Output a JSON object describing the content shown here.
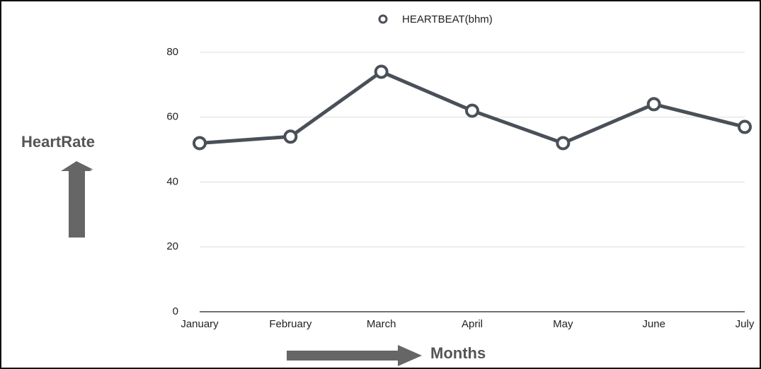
{
  "chart_data": {
    "type": "line",
    "legend": "HEARTBEAT(bhm)",
    "ylabel": "HeartRate",
    "xlabel": "Months",
    "categories": [
      "January",
      "February",
      "March",
      "April",
      "May",
      "June",
      "July"
    ],
    "series": [
      {
        "name": "HEARTBEAT(bhm)",
        "color": "#4a5058",
        "values": [
          52,
          54,
          74,
          62,
          52,
          64,
          57
        ]
      }
    ],
    "ylim": [
      0,
      80
    ],
    "yticks": [
      0,
      20,
      40,
      60,
      80
    ],
    "grid": true
  }
}
